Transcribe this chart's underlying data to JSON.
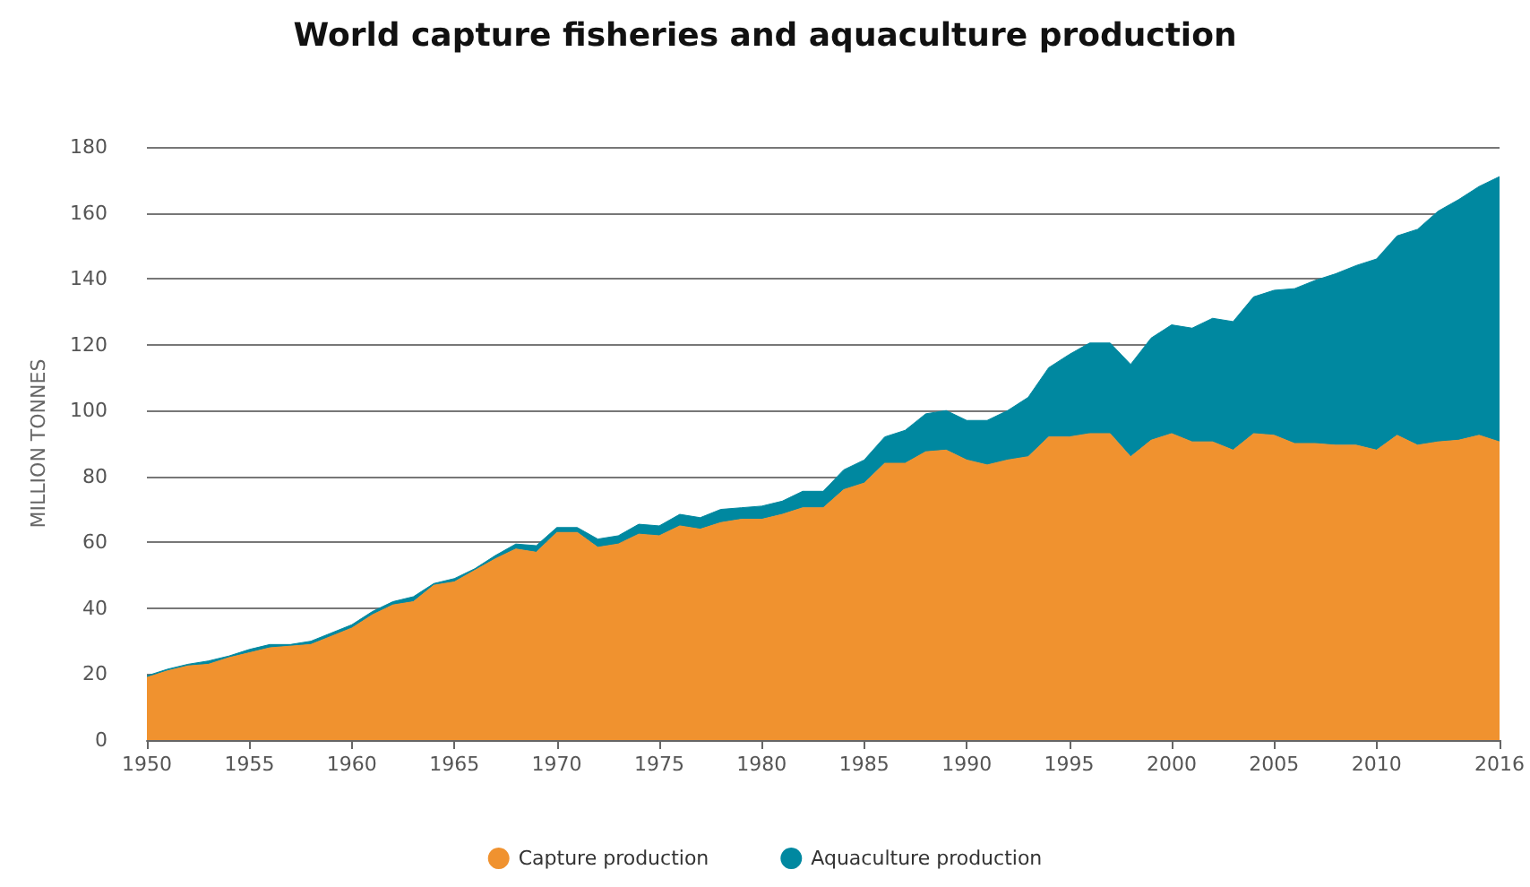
{
  "chart_data": {
    "type": "area",
    "title": "World capture fisheries and aquaculture production",
    "ylabel": "MILLION TONNES",
    "x": [
      1950,
      1951,
      1952,
      1953,
      1954,
      1955,
      1956,
      1957,
      1958,
      1959,
      1960,
      1961,
      1962,
      1963,
      1964,
      1965,
      1966,
      1967,
      1968,
      1969,
      1970,
      1971,
      1972,
      1973,
      1974,
      1975,
      1976,
      1977,
      1978,
      1979,
      1980,
      1981,
      1982,
      1983,
      1984,
      1985,
      1986,
      1987,
      1988,
      1989,
      1990,
      1991,
      1992,
      1993,
      1994,
      1995,
      1996,
      1997,
      1998,
      1999,
      2000,
      2001,
      2002,
      2003,
      2004,
      2005,
      2006,
      2007,
      2008,
      2009,
      2010,
      2011,
      2012,
      2013,
      2014,
      2015,
      2016
    ],
    "stacked": true,
    "series": [
      {
        "name": "Capture production",
        "color": "#f0922f",
        "values": [
          19,
          21,
          22.5,
          23,
          25,
          26.5,
          28,
          28.5,
          29,
          31.5,
          34,
          38,
          41,
          42,
          47,
          48,
          51.5,
          55,
          58,
          57,
          63,
          63,
          58.5,
          59.5,
          62.5,
          62,
          65,
          64,
          66,
          67,
          67,
          68.5,
          70.5,
          70.5,
          76,
          78,
          84,
          84,
          87.5,
          88,
          85,
          83.5,
          85,
          86,
          92,
          92,
          93,
          93,
          86,
          91,
          93,
          90.5,
          90.5,
          88,
          93,
          92.5,
          90,
          90,
          89.5,
          89.5,
          88,
          92.5,
          89.5,
          90.5,
          91,
          92.5,
          90.5
        ]
      },
      {
        "name": "Aquaculture production",
        "color": "#0088a0",
        "values": [
          0.5,
          0.5,
          0.5,
          1,
          0.5,
          1,
          1,
          0.5,
          1,
          1,
          1,
          1,
          1,
          1.5,
          0.5,
          1,
          0.5,
          1,
          1.5,
          2,
          1.5,
          1.5,
          2.5,
          2.5,
          3,
          3,
          3.5,
          3.5,
          4,
          3.5,
          4,
          4,
          5,
          5,
          6,
          7,
          8,
          10,
          11.5,
          12,
          12,
          13.5,
          15,
          18,
          21,
          25,
          27.5,
          27.5,
          28,
          31,
          33,
          34.5,
          37.5,
          39,
          41.5,
          44,
          47,
          49.5,
          52,
          54.5,
          58,
          60.5,
          65.5,
          70,
          73,
          75.5,
          80.5
        ]
      }
    ],
    "xlim": [
      1950,
      2016
    ],
    "xticks": [
      1950,
      1955,
      1960,
      1965,
      1970,
      1975,
      1980,
      1985,
      1990,
      1995,
      2000,
      2005,
      2010,
      2016
    ],
    "ylim": [
      0,
      180
    ],
    "yticks": [
      0,
      20,
      40,
      60,
      80,
      100,
      120,
      140,
      160,
      180
    ],
    "grid": "y",
    "legend": "bottom",
    "marker": "none"
  }
}
